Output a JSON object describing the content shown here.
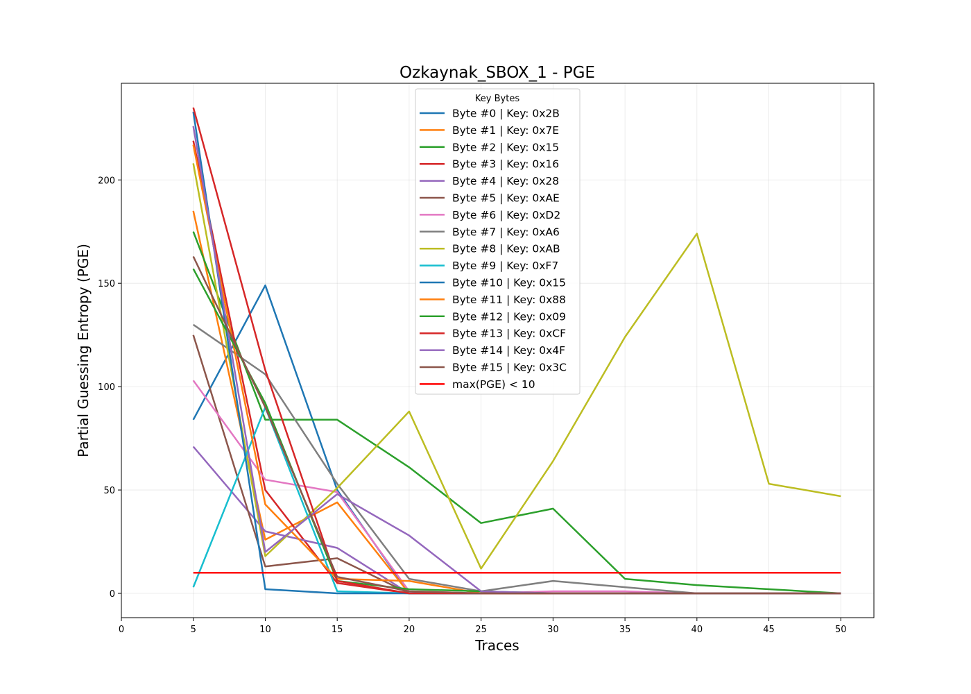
{
  "chart_data": {
    "type": "line",
    "title": "Ozkaynak_SBOX_1 - PGE",
    "xlabel": "Traces",
    "ylabel": "Partial Guessing Entropy (PGE)",
    "xlim": [
      0,
      52.3
    ],
    "ylim": [
      -11.75,
      246.75
    ],
    "xticks": [
      0,
      5,
      10,
      15,
      20,
      25,
      30,
      35,
      40,
      45,
      50
    ],
    "yticks": [
      0,
      50,
      100,
      150,
      200
    ],
    "grid": true,
    "legend": {
      "title": "Key Bytes",
      "position": "top-center"
    },
    "x": [
      5,
      10,
      15,
      20,
      25,
      30,
      35,
      40,
      45,
      50
    ],
    "series": [
      {
        "name": "Byte #0 | Key: 0x2B",
        "color": "#1f77b4",
        "values": [
          84,
          149,
          50,
          0,
          0,
          0,
          0,
          0,
          0,
          0
        ]
      },
      {
        "name": "Byte #1 | Key: 0x7E",
        "color": "#ff7f0e",
        "values": [
          185,
          26,
          44,
          0,
          0,
          0,
          0,
          0,
          0,
          0
        ]
      },
      {
        "name": "Byte #2 | Key: 0x15",
        "color": "#2ca02c",
        "values": [
          175,
          84,
          84,
          61,
          34,
          41,
          7,
          4,
          2,
          0
        ]
      },
      {
        "name": "Byte #3 | Key: 0x16",
        "color": "#d62728",
        "values": [
          219,
          50,
          5,
          0,
          0,
          0,
          0,
          0,
          0,
          0
        ]
      },
      {
        "name": "Byte #4 | Key: 0x28",
        "color": "#9467bd",
        "values": [
          71,
          30,
          22,
          0,
          0,
          0,
          0,
          0,
          0,
          0
        ]
      },
      {
        "name": "Byte #5 | Key: 0xAE",
        "color": "#8c564b",
        "values": [
          125,
          13,
          17,
          0,
          0,
          0,
          0,
          0,
          0,
          0
        ]
      },
      {
        "name": "Byte #6 | Key: 0xD2",
        "color": "#e377c2",
        "values": [
          103,
          55,
          49,
          1,
          0,
          1,
          1,
          0,
          0,
          0
        ]
      },
      {
        "name": "Byte #7 | Key: 0xA6",
        "color": "#7f7f7f",
        "values": [
          130,
          106,
          53,
          7,
          1,
          6,
          3,
          0,
          0,
          0
        ]
      },
      {
        "name": "Byte #8 | Key: 0xAB",
        "color": "#bcbd22",
        "values": [
          208,
          18,
          51,
          88,
          12,
          64,
          124,
          174,
          53,
          47
        ]
      },
      {
        "name": "Byte #9 | Key: 0xF7",
        "color": "#17becf",
        "values": [
          3,
          90,
          1,
          0,
          0,
          0,
          0,
          0,
          0,
          0
        ]
      },
      {
        "name": "Byte #10 | Key: 0x15",
        "color": "#1f77b4",
        "values": [
          233,
          2,
          0,
          0,
          0,
          0,
          0,
          0,
          0,
          0
        ]
      },
      {
        "name": "Byte #11 | Key: 0x88",
        "color": "#ff7f0e",
        "values": [
          217,
          43,
          7,
          6,
          0,
          0,
          0,
          0,
          0,
          0
        ]
      },
      {
        "name": "Byte #12 | Key: 0x09",
        "color": "#2ca02c",
        "values": [
          157,
          92,
          6,
          2,
          1,
          0,
          0,
          0,
          0,
          0
        ]
      },
      {
        "name": "Byte #13 | Key: 0xCF",
        "color": "#d62728",
        "values": [
          235,
          108,
          6,
          0,
          0,
          0,
          0,
          0,
          0,
          0
        ]
      },
      {
        "name": "Byte #14 | Key: 0x4F",
        "color": "#9467bd",
        "values": [
          226,
          20,
          48,
          28,
          1,
          0,
          0,
          0,
          0,
          0
        ]
      },
      {
        "name": "Byte #15 | Key: 0x3C",
        "color": "#8c564b",
        "values": [
          163,
          90,
          8,
          1,
          0,
          0,
          0,
          0,
          0,
          0
        ]
      }
    ],
    "threshold": {
      "name": "max(PGE) < 10",
      "color": "#ff0000",
      "value": 10,
      "x_range": [
        5,
        50
      ]
    }
  }
}
